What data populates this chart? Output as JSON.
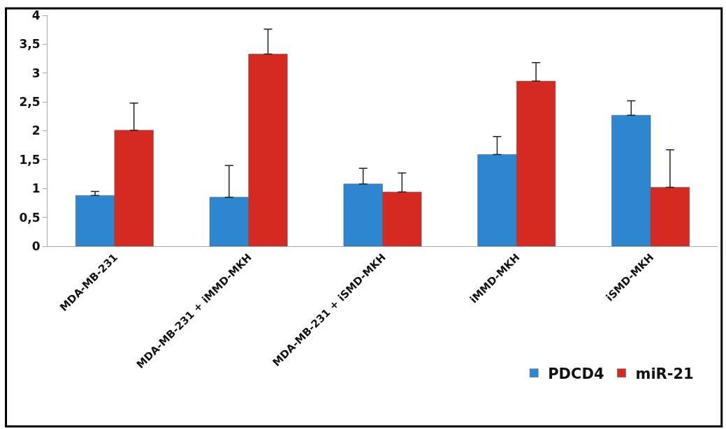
{
  "chart_data": {
    "type": "bar",
    "categories": [
      "MDA-MB-231",
      "MDA-MB-231 + iMMD-MKH",
      "MDA-MB-231 + iSMD-MKH",
      "iMMD-MKH",
      "iSMD-MKH"
    ],
    "series": [
      {
        "name": "PDCD4",
        "color": "#2e86d0",
        "values": [
          0.88,
          0.85,
          1.08,
          1.59,
          2.27
        ],
        "errors": [
          [
            0.88,
            0.95
          ],
          [
            0.85,
            1.4
          ],
          [
            1.08,
            1.35
          ],
          [
            1.59,
            1.9
          ],
          [
            2.27,
            2.52
          ]
        ]
      },
      {
        "name": "miR-21",
        "color": "#d42a22",
        "values": [
          2.01,
          3.33,
          0.94,
          2.86,
          1.02
        ],
        "errors": [
          [
            2.01,
            2.48
          ],
          [
            3.33,
            3.76
          ],
          [
            0.94,
            1.27
          ],
          [
            2.86,
            3.18
          ],
          [
            1.02,
            1.67
          ]
        ]
      }
    ],
    "ylim": [
      0,
      4
    ],
    "yticks": [
      {
        "value": 0,
        "label": "0"
      },
      {
        "value": 0.5,
        "label": "0,5"
      },
      {
        "value": 1,
        "label": "1"
      },
      {
        "value": 1.5,
        "label": "1,5"
      },
      {
        "value": 2,
        "label": "2"
      },
      {
        "value": 2.5,
        "label": "2,5"
      },
      {
        "value": 3,
        "label": "3"
      },
      {
        "value": 3.5,
        "label": "3,5"
      },
      {
        "value": 4,
        "label": "4"
      }
    ],
    "legend": "bottom right"
  }
}
